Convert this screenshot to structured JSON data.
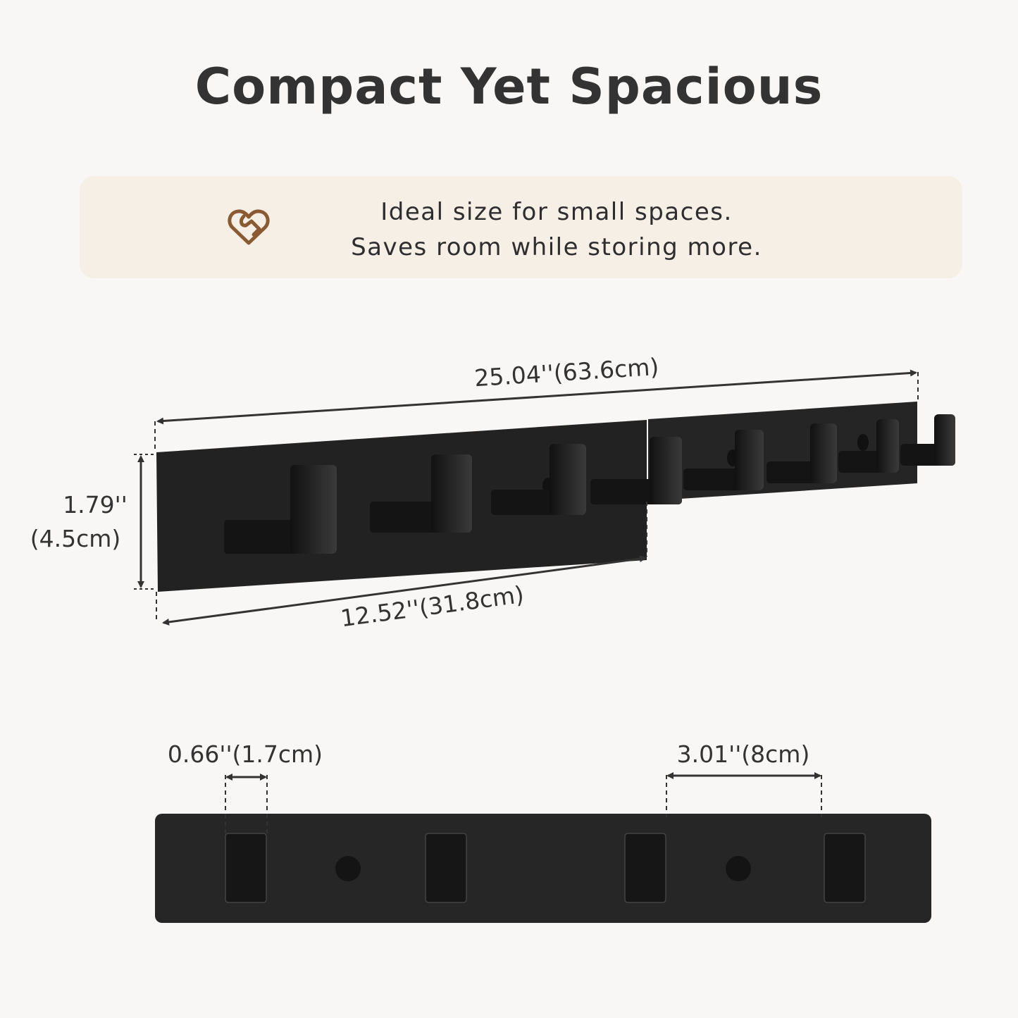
{
  "title": "Compact Yet Spacious",
  "banner": {
    "icon": "heart-handshake-icon",
    "line1": "Ideal size for small spaces.",
    "line2": "Saves room while storing more."
  },
  "dimensions": {
    "total_length": "25.04''(63.6cm)",
    "height_in": "1.79''",
    "height_cm": "(4.5cm)",
    "panel_length": "12.52''(31.8cm)",
    "hook_width": "0.66''(1.7cm)",
    "hook_spacing": "3.01''(8cm)"
  },
  "colors": {
    "background": "#f8f7f5",
    "banner": "#f6efe6",
    "icon": "#8a5a33",
    "product": "#1f1f1f",
    "text": "#333333"
  }
}
